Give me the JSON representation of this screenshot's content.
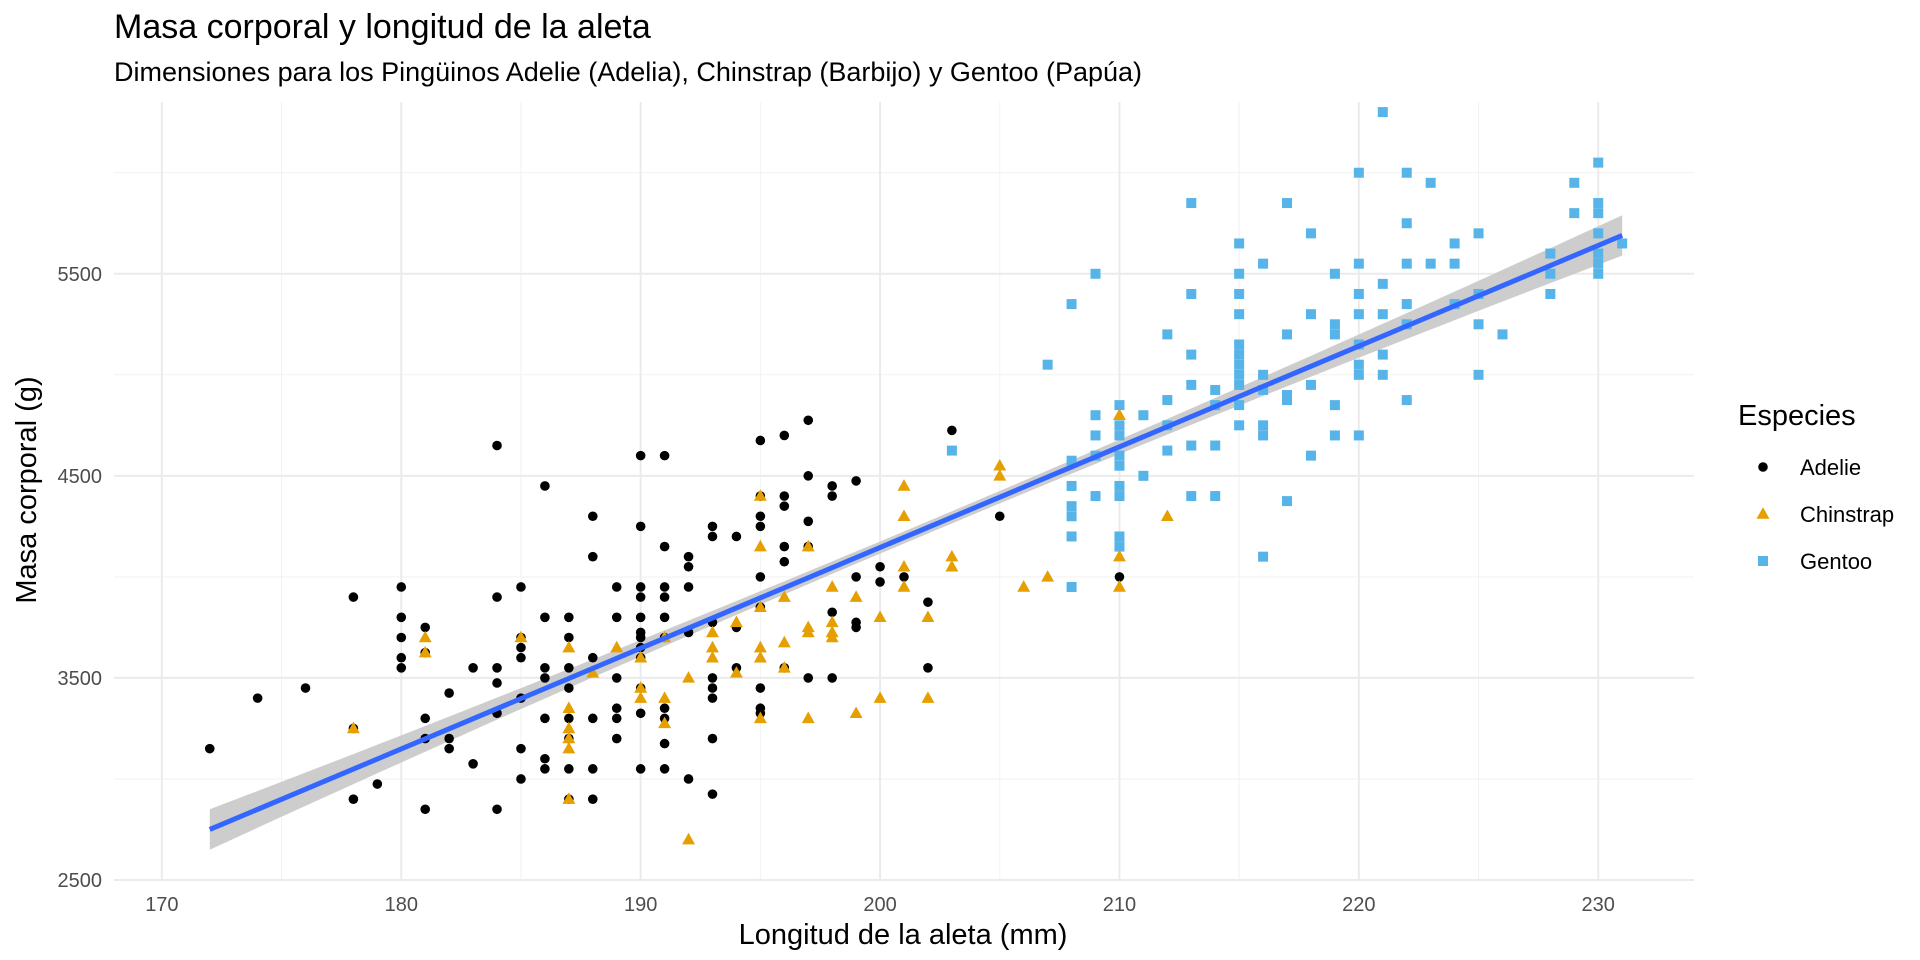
{
  "chart_data": {
    "type": "scatter",
    "title": "Masa corporal y longitud de la aleta",
    "subtitle": "Dimensiones para los Pingüinos Adelie (Adelia), Chinstrap (Barbijo) y Gentoo (Papúa)",
    "xlabel": "Longitud de la aleta (mm)",
    "ylabel": "Masa corporal (g)",
    "xlim": [
      168,
      234
    ],
    "ylim": [
      2500,
      6350
    ],
    "x_ticks": [
      170,
      180,
      190,
      200,
      210,
      220,
      230
    ],
    "x_tick_labels": [
      "170",
      "180",
      "190",
      "200",
      "210",
      "220",
      "230"
    ],
    "y_ticks": [
      2500,
      3500,
      4500,
      5500
    ],
    "y_tick_labels": [
      "2500",
      "3500",
      "4500",
      "5500"
    ],
    "grid": true,
    "legend": {
      "title": "Especies",
      "position": "right"
    },
    "series": [
      {
        "name": "Adelie",
        "shape": "circle",
        "color": "#000000",
        "points": [
          [
            172,
            3150
          ],
          [
            174,
            3400
          ],
          [
            176,
            3450
          ],
          [
            178,
            3900
          ],
          [
            178,
            3250
          ],
          [
            178,
            2900
          ],
          [
            179,
            2975
          ],
          [
            180,
            3950
          ],
          [
            180,
            3800
          ],
          [
            180,
            3700
          ],
          [
            180,
            3600
          ],
          [
            180,
            3550
          ],
          [
            181,
            3750
          ],
          [
            181,
            3625
          ],
          [
            181,
            3300
          ],
          [
            181,
            3200
          ],
          [
            181,
            2850
          ],
          [
            182,
            3425
          ],
          [
            182,
            3200
          ],
          [
            182,
            3150
          ],
          [
            183,
            3550
          ],
          [
            183,
            3075
          ],
          [
            184,
            4650
          ],
          [
            184,
            3900
          ],
          [
            184,
            3550
          ],
          [
            184,
            3475
          ],
          [
            184,
            3325
          ],
          [
            184,
            2850
          ],
          [
            185,
            3950
          ],
          [
            185,
            3700
          ],
          [
            185,
            3650
          ],
          [
            185,
            3600
          ],
          [
            185,
            3400
          ],
          [
            185,
            3150
          ],
          [
            185,
            3000
          ],
          [
            186,
            4450
          ],
          [
            186,
            3800
          ],
          [
            186,
            3550
          ],
          [
            186,
            3500
          ],
          [
            186,
            3300
          ],
          [
            186,
            3100
          ],
          [
            186,
            3050
          ],
          [
            187,
            3800
          ],
          [
            187,
            3700
          ],
          [
            187,
            3550
          ],
          [
            187,
            3450
          ],
          [
            187,
            3300
          ],
          [
            187,
            3200
          ],
          [
            187,
            3050
          ],
          [
            187,
            2900
          ],
          [
            188,
            4300
          ],
          [
            188,
            4100
          ],
          [
            188,
            3600
          ],
          [
            188,
            3300
          ],
          [
            188,
            3050
          ],
          [
            188,
            2900
          ],
          [
            189,
            3950
          ],
          [
            189,
            3800
          ],
          [
            189,
            3500
          ],
          [
            189,
            3350
          ],
          [
            189,
            3300
          ],
          [
            189,
            3200
          ],
          [
            190,
            4600
          ],
          [
            190,
            4250
          ],
          [
            190,
            3950
          ],
          [
            190,
            3900
          ],
          [
            190,
            3800
          ],
          [
            190,
            3725
          ],
          [
            190,
            3700
          ],
          [
            190,
            3650
          ],
          [
            190,
            3600
          ],
          [
            190,
            3450
          ],
          [
            190,
            3325
          ],
          [
            190,
            3050
          ],
          [
            191,
            4600
          ],
          [
            191,
            4150
          ],
          [
            191,
            3950
          ],
          [
            191,
            3900
          ],
          [
            191,
            3800
          ],
          [
            191,
            3700
          ],
          [
            191,
            3350
          ],
          [
            191,
            3300
          ],
          [
            191,
            3175
          ],
          [
            191,
            3050
          ],
          [
            192,
            4100
          ],
          [
            192,
            4050
          ],
          [
            192,
            3950
          ],
          [
            192,
            3725
          ],
          [
            192,
            3000
          ],
          [
            193,
            4250
          ],
          [
            193,
            4200
          ],
          [
            193,
            3775
          ],
          [
            193,
            3500
          ],
          [
            193,
            3450
          ],
          [
            193,
            3400
          ],
          [
            193,
            3200
          ],
          [
            193,
            2925
          ],
          [
            194,
            4200
          ],
          [
            194,
            3750
          ],
          [
            194,
            3550
          ],
          [
            195,
            4675
          ],
          [
            195,
            4400
          ],
          [
            195,
            4300
          ],
          [
            195,
            4250
          ],
          [
            195,
            4000
          ],
          [
            195,
            3850
          ],
          [
            195,
            3450
          ],
          [
            195,
            3350
          ],
          [
            195,
            3325
          ],
          [
            196,
            4700
          ],
          [
            196,
            4400
          ],
          [
            196,
            4350
          ],
          [
            196,
            4150
          ],
          [
            196,
            4075
          ],
          [
            196,
            3550
          ],
          [
            197,
            4775
          ],
          [
            197,
            4500
          ],
          [
            197,
            4275
          ],
          [
            197,
            4150
          ],
          [
            197,
            3500
          ],
          [
            198,
            4450
          ],
          [
            198,
            4400
          ],
          [
            198,
            3825
          ],
          [
            198,
            3500
          ],
          [
            199,
            4475
          ],
          [
            199,
            4000
          ],
          [
            199,
            3775
          ],
          [
            199,
            3750
          ],
          [
            200,
            4050
          ],
          [
            200,
            3975
          ],
          [
            201,
            4000
          ],
          [
            202,
            3875
          ],
          [
            202,
            3550
          ],
          [
            203,
            4725
          ],
          [
            205,
            4300
          ],
          [
            210,
            4000
          ]
        ]
      },
      {
        "name": "Chinstrap",
        "shape": "triangle",
        "color": "#e69f00",
        "points": [
          [
            178,
            3250
          ],
          [
            181,
            3700
          ],
          [
            181,
            3625
          ],
          [
            185,
            3700
          ],
          [
            187,
            3650
          ],
          [
            187,
            3350
          ],
          [
            187,
            3250
          ],
          [
            187,
            3200
          ],
          [
            187,
            3150
          ],
          [
            187,
            2900
          ],
          [
            188,
            3525
          ],
          [
            189,
            3650
          ],
          [
            190,
            3600
          ],
          [
            190,
            3450
          ],
          [
            190,
            3400
          ],
          [
            191,
            3700
          ],
          [
            191,
            3400
          ],
          [
            191,
            3275
          ],
          [
            192,
            3500
          ],
          [
            192,
            2700
          ],
          [
            193,
            3725
          ],
          [
            193,
            3650
          ],
          [
            193,
            3600
          ],
          [
            194,
            3775
          ],
          [
            194,
            3525
          ],
          [
            195,
            4400
          ],
          [
            195,
            4150
          ],
          [
            195,
            3850
          ],
          [
            195,
            3650
          ],
          [
            195,
            3600
          ],
          [
            195,
            3300
          ],
          [
            196,
            3900
          ],
          [
            196,
            3675
          ],
          [
            196,
            3550
          ],
          [
            197,
            4150
          ],
          [
            197,
            3750
          ],
          [
            197,
            3725
          ],
          [
            197,
            3300
          ],
          [
            198,
            3950
          ],
          [
            198,
            3775
          ],
          [
            198,
            3725
          ],
          [
            198,
            3700
          ],
          [
            199,
            3900
          ],
          [
            199,
            3325
          ],
          [
            200,
            3800
          ],
          [
            200,
            3400
          ],
          [
            201,
            4450
          ],
          [
            201,
            4300
          ],
          [
            201,
            4050
          ],
          [
            201,
            3950
          ],
          [
            202,
            3800
          ],
          [
            202,
            3400
          ],
          [
            203,
            4100
          ],
          [
            203,
            4050
          ],
          [
            205,
            4550
          ],
          [
            205,
            4500
          ],
          [
            206,
            3950
          ],
          [
            207,
            4000
          ],
          [
            210,
            4800
          ],
          [
            210,
            4100
          ],
          [
            210,
            3950
          ],
          [
            212,
            4300
          ]
        ]
      },
      {
        "name": "Gentoo",
        "shape": "square",
        "color": "#56b4e9",
        "points": [
          [
            203,
            4625
          ],
          [
            207,
            5050
          ],
          [
            208,
            5350
          ],
          [
            208,
            4575
          ],
          [
            208,
            4450
          ],
          [
            208,
            4350
          ],
          [
            208,
            4300
          ],
          [
            208,
            4200
          ],
          [
            208,
            3950
          ],
          [
            209,
            5500
          ],
          [
            209,
            4800
          ],
          [
            209,
            4700
          ],
          [
            209,
            4600
          ],
          [
            209,
            4400
          ],
          [
            210,
            4850
          ],
          [
            210,
            4750
          ],
          [
            210,
            4700
          ],
          [
            210,
            4600
          ],
          [
            210,
            4550
          ],
          [
            210,
            4450
          ],
          [
            210,
            4400
          ],
          [
            210,
            4200
          ],
          [
            210,
            4150
          ],
          [
            211,
            4800
          ],
          [
            211,
            4500
          ],
          [
            212,
            5200
          ],
          [
            212,
            4875
          ],
          [
            212,
            4750
          ],
          [
            212,
            4625
          ],
          [
            213,
            5850
          ],
          [
            213,
            5400
          ],
          [
            213,
            5100
          ],
          [
            213,
            4950
          ],
          [
            213,
            4650
          ],
          [
            213,
            4400
          ],
          [
            214,
            4925
          ],
          [
            214,
            4850
          ],
          [
            214,
            4650
          ],
          [
            214,
            4400
          ],
          [
            215,
            5650
          ],
          [
            215,
            5500
          ],
          [
            215,
            5400
          ],
          [
            215,
            5300
          ],
          [
            215,
            5150
          ],
          [
            215,
            5100
          ],
          [
            215,
            5050
          ],
          [
            215,
            5000
          ],
          [
            215,
            4950
          ],
          [
            215,
            4850
          ],
          [
            215,
            4750
          ],
          [
            216,
            5550
          ],
          [
            216,
            5000
          ],
          [
            216,
            4925
          ],
          [
            216,
            4750
          ],
          [
            216,
            4700
          ],
          [
            216,
            4100
          ],
          [
            217,
            5850
          ],
          [
            217,
            5200
          ],
          [
            217,
            4900
          ],
          [
            217,
            4875
          ],
          [
            217,
            4375
          ],
          [
            218,
            5700
          ],
          [
            218,
            5300
          ],
          [
            218,
            4950
          ],
          [
            218,
            4600
          ],
          [
            219,
            5500
          ],
          [
            219,
            5250
          ],
          [
            219,
            5200
          ],
          [
            219,
            4850
          ],
          [
            219,
            4700
          ],
          [
            220,
            6000
          ],
          [
            220,
            5550
          ],
          [
            220,
            5400
          ],
          [
            220,
            5300
          ],
          [
            220,
            5150
          ],
          [
            220,
            5050
          ],
          [
            220,
            5000
          ],
          [
            220,
            4700
          ],
          [
            221,
            6300
          ],
          [
            221,
            5450
          ],
          [
            221,
            5300
          ],
          [
            221,
            5100
          ],
          [
            221,
            5000
          ],
          [
            222,
            6000
          ],
          [
            222,
            5750
          ],
          [
            222,
            5550
          ],
          [
            222,
            5350
          ],
          [
            222,
            5250
          ],
          [
            222,
            4875
          ],
          [
            223,
            5950
          ],
          [
            223,
            5550
          ],
          [
            224,
            5650
          ],
          [
            224,
            5550
          ],
          [
            224,
            5350
          ],
          [
            225,
            5700
          ],
          [
            225,
            5400
          ],
          [
            225,
            5250
          ],
          [
            225,
            5000
          ],
          [
            226,
            5200
          ],
          [
            228,
            5600
          ],
          [
            228,
            5500
          ],
          [
            228,
            5400
          ],
          [
            229,
            5950
          ],
          [
            229,
            5800
          ],
          [
            230,
            6050
          ],
          [
            230,
            5850
          ],
          [
            230,
            5800
          ],
          [
            230,
            5700
          ],
          [
            230,
            5600
          ],
          [
            230,
            5550
          ],
          [
            230,
            5500
          ],
          [
            231,
            5650
          ]
        ]
      }
    ],
    "trend_line": {
      "method": "linear",
      "color": "#3366ff",
      "band_color": "#c8c8c8",
      "start": [
        172,
        2750
      ],
      "end": [
        231,
        5690
      ],
      "band_halfwidth_ends": 100,
      "band_halfwidth_mid": 30
    }
  }
}
